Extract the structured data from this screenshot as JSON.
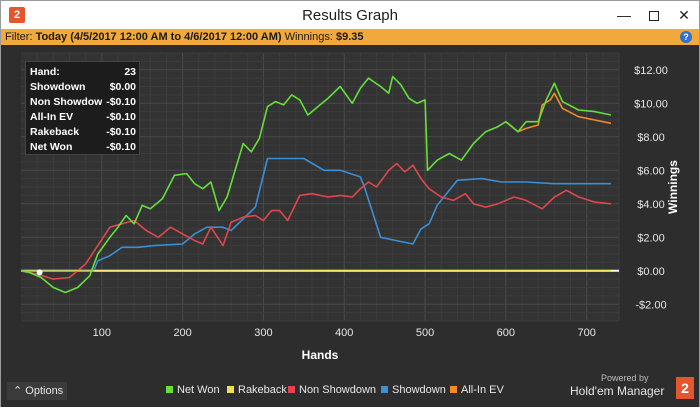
{
  "window": {
    "title": "Results Graph",
    "app_icon": "2",
    "minimize_glyph": "—",
    "close_glyph": "✕"
  },
  "filter": {
    "label": "Filter:",
    "range": "Today (4/5/2017 12:00 AM to 4/6/2017 12:00 AM)",
    "winnings_label": "Winnings:",
    "winnings_value": "$9.35",
    "help_glyph": "?"
  },
  "stats": [
    {
      "label": "Hand:",
      "value": "23"
    },
    {
      "label": "Showdown",
      "value": "$0.00"
    },
    {
      "label": "Non Showdown",
      "value": "-$0.10"
    },
    {
      "label": "All-In EV",
      "value": "-$0.10"
    },
    {
      "label": "Rakeback",
      "value": "-$0.10"
    },
    {
      "label": "Net Won",
      "value": "-$0.10"
    }
  ],
  "options_label": "⌃  Options",
  "legend": [
    {
      "name": "Net Won",
      "color": "#63e03a"
    },
    {
      "name": "Rakeback",
      "color": "#f0e04a"
    },
    {
      "name": "Non Showdown",
      "color": "#e0474c"
    },
    {
      "name": "Showdown",
      "color": "#3a8fd6"
    },
    {
      "name": "All-In EV",
      "color": "#f08a2a"
    }
  ],
  "branding": {
    "powered_by": "Powered by",
    "product": "Hold'em Manager",
    "logo": "2"
  },
  "chart_data": {
    "type": "line",
    "xlabel": "Hands",
    "ylabel": "Winnings",
    "xlim": [
      0,
      740
    ],
    "ylim": [
      -3,
      13
    ],
    "x_ticks": [
      100,
      200,
      300,
      400,
      500,
      600,
      700
    ],
    "y_ticks": [
      -2,
      0,
      2,
      4,
      6,
      8,
      10,
      12
    ],
    "y_tick_labels": [
      "-$2.00",
      "$0.00",
      "$2.00",
      "$4.00",
      "$6.00",
      "$8.00",
      "$10.00",
      "$12.00"
    ],
    "grid": true,
    "legend_position": "bottom",
    "series": [
      {
        "name": "Net Won",
        "color": "#63e03a",
        "points": [
          [
            0,
            0
          ],
          [
            10,
            -0.1
          ],
          [
            25,
            -0.4
          ],
          [
            40,
            -1.0
          ],
          [
            55,
            -1.3
          ],
          [
            70,
            -1.0
          ],
          [
            85,
            -0.3
          ],
          [
            95,
            1.0
          ],
          [
            110,
            2.0
          ],
          [
            120,
            2.6
          ],
          [
            130,
            3.3
          ],
          [
            140,
            2.8
          ],
          [
            150,
            3.9
          ],
          [
            160,
            3.7
          ],
          [
            175,
            4.3
          ],
          [
            190,
            5.7
          ],
          [
            205,
            5.8
          ],
          [
            215,
            5.2
          ],
          [
            225,
            4.9
          ],
          [
            235,
            5.3
          ],
          [
            245,
            3.6
          ],
          [
            255,
            4.4
          ],
          [
            265,
            6.0
          ],
          [
            275,
            7.6
          ],
          [
            285,
            7.1
          ],
          [
            295,
            7.9
          ],
          [
            305,
            9.8
          ],
          [
            315,
            10.1
          ],
          [
            325,
            9.9
          ],
          [
            335,
            10.5
          ],
          [
            345,
            10.2
          ],
          [
            355,
            9.3
          ],
          [
            370,
            9.9
          ],
          [
            380,
            10.3
          ],
          [
            395,
            11.0
          ],
          [
            410,
            10.0
          ],
          [
            420,
            10.9
          ],
          [
            430,
            11.5
          ],
          [
            445,
            11.0
          ],
          [
            455,
            10.6
          ],
          [
            460,
            11.6
          ],
          [
            470,
            11.1
          ],
          [
            480,
            10.3
          ],
          [
            490,
            10.0
          ],
          [
            500,
            10.2
          ],
          [
            503,
            6.0
          ],
          [
            515,
            6.6
          ],
          [
            530,
            7.0
          ],
          [
            545,
            6.6
          ],
          [
            560,
            7.6
          ],
          [
            575,
            8.3
          ],
          [
            590,
            8.6
          ],
          [
            600,
            8.9
          ],
          [
            615,
            8.3
          ],
          [
            625,
            8.9
          ],
          [
            640,
            8.9
          ],
          [
            650,
            10.2
          ],
          [
            660,
            11.2
          ],
          [
            670,
            10.1
          ],
          [
            690,
            9.6
          ],
          [
            710,
            9.5
          ],
          [
            730,
            9.3
          ]
        ]
      },
      {
        "name": "All-In EV",
        "color": "#f08a2a",
        "points": [
          [
            600,
            8.9
          ],
          [
            615,
            8.3
          ],
          [
            625,
            8.5
          ],
          [
            640,
            8.7
          ],
          [
            645,
            9.9
          ],
          [
            655,
            10.2
          ],
          [
            660,
            10.6
          ],
          [
            670,
            9.7
          ],
          [
            690,
            9.2
          ],
          [
            710,
            9.0
          ],
          [
            730,
            8.8
          ]
        ]
      },
      {
        "name": "Showdown",
        "color": "#3a8fd6",
        "points": [
          [
            0,
            0
          ],
          [
            90,
            0
          ],
          [
            95,
            0.6
          ],
          [
            110,
            0.9
          ],
          [
            125,
            1.4
          ],
          [
            145,
            1.4
          ],
          [
            165,
            1.5
          ],
          [
            200,
            1.6
          ],
          [
            215,
            2.2
          ],
          [
            230,
            2.6
          ],
          [
            250,
            2.6
          ],
          [
            260,
            2.4
          ],
          [
            290,
            3.8
          ],
          [
            305,
            6.7
          ],
          [
            325,
            6.7
          ],
          [
            350,
            6.7
          ],
          [
            375,
            6.0
          ],
          [
            395,
            6.0
          ],
          [
            420,
            5.6
          ],
          [
            425,
            5.0
          ],
          [
            445,
            2.0
          ],
          [
            485,
            1.6
          ],
          [
            495,
            2.5
          ],
          [
            505,
            2.8
          ],
          [
            515,
            3.9
          ],
          [
            540,
            5.4
          ],
          [
            570,
            5.5
          ],
          [
            595,
            5.3
          ],
          [
            625,
            5.3
          ],
          [
            660,
            5.2
          ],
          [
            690,
            5.2
          ],
          [
            730,
            5.2
          ]
        ]
      },
      {
        "name": "Non Showdown",
        "color": "#e0474c",
        "points": [
          [
            0,
            0
          ],
          [
            20,
            -0.2
          ],
          [
            40,
            -0.5
          ],
          [
            60,
            -0.4
          ],
          [
            80,
            0.4
          ],
          [
            95,
            1.5
          ],
          [
            110,
            2.6
          ],
          [
            125,
            2.8
          ],
          [
            140,
            3.0
          ],
          [
            155,
            2.4
          ],
          [
            170,
            2.0
          ],
          [
            185,
            2.6
          ],
          [
            200,
            2.2
          ],
          [
            215,
            1.8
          ],
          [
            225,
            1.6
          ],
          [
            235,
            2.6
          ],
          [
            250,
            1.5
          ],
          [
            260,
            2.9
          ],
          [
            275,
            3.2
          ],
          [
            290,
            3.3
          ],
          [
            300,
            3.0
          ],
          [
            310,
            3.6
          ],
          [
            320,
            3.6
          ],
          [
            330,
            3.0
          ],
          [
            345,
            4.5
          ],
          [
            360,
            4.6
          ],
          [
            380,
            4.4
          ],
          [
            395,
            4.5
          ],
          [
            410,
            4.4
          ],
          [
            420,
            4.9
          ],
          [
            430,
            5.3
          ],
          [
            440,
            5.0
          ],
          [
            455,
            6.0
          ],
          [
            465,
            6.4
          ],
          [
            475,
            5.9
          ],
          [
            485,
            6.3
          ],
          [
            495,
            5.5
          ],
          [
            505,
            4.9
          ],
          [
            520,
            4.4
          ],
          [
            535,
            4.2
          ],
          [
            550,
            4.6
          ],
          [
            560,
            4.0
          ],
          [
            575,
            3.8
          ],
          [
            590,
            4.0
          ],
          [
            610,
            4.4
          ],
          [
            625,
            4.2
          ],
          [
            645,
            3.7
          ],
          [
            660,
            4.4
          ],
          [
            675,
            4.8
          ],
          [
            690,
            4.4
          ],
          [
            710,
            4.1
          ],
          [
            730,
            4.0
          ]
        ]
      },
      {
        "name": "Rakeback",
        "color": "#f0e04a",
        "points": [
          [
            0,
            0
          ],
          [
            730,
            0.01
          ]
        ]
      }
    ]
  }
}
